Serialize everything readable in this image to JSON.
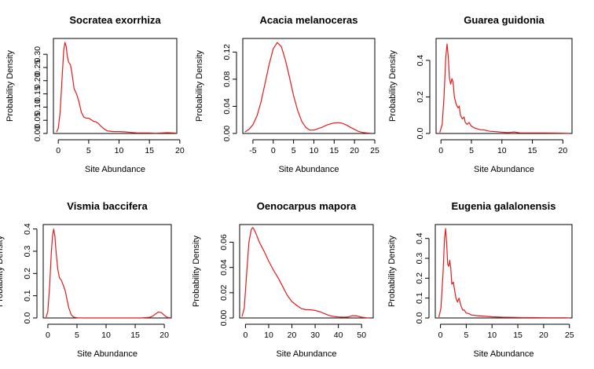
{
  "chart_data": [
    {
      "type": "line",
      "title": "Socratea exorrhiza",
      "xlabel": "Site Abundance",
      "ylabel": "Probability Density",
      "xlim": [
        -0.8,
        19.5
      ],
      "ylim": [
        0,
        0.36
      ],
      "xticks": [
        0,
        5,
        10,
        15,
        20
      ],
      "yticks": [
        0,
        0.05,
        0.1,
        0.15,
        0.2,
        0.25,
        0.3
      ],
      "ytick_labels": [
        "0.00",
        "0.05",
        "0.10",
        "0.15",
        "0.20",
        "0.25",
        "0.30"
      ],
      "series": [
        {
          "color": "#e41a1c",
          "x": [
            -0.3,
            0,
            0.3,
            0.6,
            0.9,
            1.1,
            1.3,
            1.5,
            1.7,
            2.0,
            2.3,
            2.6,
            3.0,
            3.4,
            3.8,
            4.2,
            4.6,
            5.0,
            5.4,
            5.8,
            6.2,
            6.6,
            7.0,
            7.5,
            8.0,
            9.0,
            10.0,
            11.0,
            12.0,
            13.0,
            14.0,
            15.0,
            16.0,
            17.0,
            18.0,
            19.0,
            19.5
          ],
          "y": [
            0.005,
            0.02,
            0.08,
            0.2,
            0.315,
            0.345,
            0.33,
            0.29,
            0.27,
            0.26,
            0.22,
            0.17,
            0.15,
            0.12,
            0.08,
            0.062,
            0.058,
            0.058,
            0.052,
            0.046,
            0.044,
            0.038,
            0.028,
            0.018,
            0.01,
            0.007,
            0.007,
            0.006,
            0.004,
            0.002,
            0.002,
            0.002,
            0.001,
            0.002,
            0.003,
            0.002,
            0.001
          ]
        }
      ]
    },
    {
      "type": "line",
      "title": "Acacia melanoceras",
      "xlabel": "Site Abundance",
      "ylabel": "Probability Density",
      "xlim": [
        -7.5,
        25
      ],
      "ylim": [
        0,
        0.14
      ],
      "xticks": [
        -5,
        0,
        5,
        10,
        15,
        20,
        25
      ],
      "yticks": [
        0,
        0.04,
        0.08,
        0.12
      ],
      "ytick_labels": [
        "0.00",
        "0.04",
        "0.08",
        "0.12"
      ],
      "series": [
        {
          "color": "#e41a1c",
          "x": [
            -7,
            -6,
            -5,
            -4,
            -3,
            -2,
            -1,
            0,
            1,
            2,
            3,
            4,
            5,
            6,
            7,
            8,
            9,
            10,
            11,
            12,
            13,
            14,
            15,
            16,
            17,
            18,
            19,
            20,
            21,
            22,
            23,
            24
          ],
          "y": [
            0.002,
            0.006,
            0.013,
            0.026,
            0.047,
            0.074,
            0.102,
            0.125,
            0.134,
            0.128,
            0.108,
            0.083,
            0.056,
            0.034,
            0.018,
            0.009,
            0.005,
            0.005,
            0.007,
            0.009,
            0.012,
            0.014,
            0.0155,
            0.016,
            0.015,
            0.0125,
            0.009,
            0.006,
            0.003,
            0.0015,
            0.0008,
            0.0003
          ]
        }
      ]
    },
    {
      "type": "line",
      "title": "Guarea guidonia",
      "xlabel": "Site Abundance",
      "ylabel": "Probability Density",
      "xlim": [
        -0.8,
        21.5
      ],
      "ylim": [
        0,
        0.52
      ],
      "xticks": [
        0,
        5,
        10,
        15,
        20
      ],
      "yticks": [
        0,
        0.2,
        0.4
      ],
      "ytick_labels": [
        "0.0",
        "0.2",
        "0.4"
      ],
      "series": [
        {
          "color": "#e41a1c",
          "x": [
            -0.2,
            0.2,
            0.5,
            0.8,
            1.0,
            1.2,
            1.4,
            1.6,
            1.8,
            2.0,
            2.2,
            2.5,
            2.8,
            3.0,
            3.2,
            3.5,
            3.8,
            4.0,
            4.3,
            4.6,
            5.0,
            5.5,
            6.0,
            6.5,
            7.0,
            8.0,
            9.0,
            10.0,
            11.0,
            12.0,
            13.0,
            15.0,
            17.0,
            19.0,
            21.0
          ],
          "y": [
            0.005,
            0.05,
            0.2,
            0.42,
            0.49,
            0.42,
            0.3,
            0.27,
            0.3,
            0.28,
            0.2,
            0.16,
            0.14,
            0.15,
            0.1,
            0.08,
            0.09,
            0.06,
            0.05,
            0.06,
            0.04,
            0.03,
            0.025,
            0.02,
            0.02,
            0.012,
            0.01,
            0.007,
            0.005,
            0.008,
            0.003,
            0.003,
            0.003,
            0.002,
            0.001
          ]
        }
      ]
    },
    {
      "type": "line",
      "title": "Vismia baccifera",
      "xlabel": "Site Abundance",
      "ylabel": "Probability Density",
      "xlim": [
        -0.8,
        21.2
      ],
      "ylim": [
        0,
        0.42
      ],
      "xticks": [
        0,
        5,
        10,
        15,
        20
      ],
      "yticks": [
        0,
        0.1,
        0.2,
        0.3,
        0.4
      ],
      "ytick_labels": [
        "0.0",
        "0.1",
        "0.2",
        "0.3",
        "0.4"
      ],
      "series": [
        {
          "color": "#e41a1c",
          "x": [
            -0.3,
            0,
            0.3,
            0.6,
            0.8,
            1.0,
            1.2,
            1.4,
            1.7,
            2.0,
            2.3,
            2.6,
            3.0,
            3.3,
            3.6,
            4.0,
            4.4,
            5.0,
            6.0,
            8.0,
            10.0,
            12.0,
            14.0,
            16.0,
            17.5,
            18.0,
            18.5,
            19.0,
            19.5,
            20.0,
            20.5,
            21.0
          ],
          "y": [
            0.003,
            0.03,
            0.14,
            0.3,
            0.37,
            0.4,
            0.37,
            0.3,
            0.22,
            0.18,
            0.17,
            0.15,
            0.12,
            0.08,
            0.045,
            0.015,
            0.004,
            0.001,
            0.0,
            0.0,
            0.0,
            0.0,
            0.0,
            0.0,
            0.003,
            0.008,
            0.018,
            0.027,
            0.024,
            0.012,
            0.003,
            0.001
          ]
        }
      ]
    },
    {
      "type": "line",
      "title": "Oenocarpus mapora",
      "xlabel": "Site Abundance",
      "ylabel": "Probability Density",
      "xlim": [
        -2.5,
        55
      ],
      "ylim": [
        0,
        0.074
      ],
      "xticks": [
        0,
        10,
        20,
        30,
        40,
        50
      ],
      "yticks": [
        0,
        0.02,
        0.04,
        0.06
      ],
      "ytick_labels": [
        "0.00",
        "0.02",
        "0.04",
        "0.06"
      ],
      "series": [
        {
          "color": "#e41a1c",
          "x": [
            -1.5,
            -0.5,
            0.5,
            1.5,
            2.5,
            3.0,
            3.5,
            4.5,
            6,
            8,
            10,
            12,
            14,
            16,
            18,
            20,
            22,
            24,
            26,
            28,
            30,
            32,
            34,
            36,
            38,
            40,
            42,
            44,
            46,
            48,
            50,
            52,
            53.5
          ],
          "y": [
            0.001,
            0.008,
            0.035,
            0.06,
            0.07,
            0.0715,
            0.071,
            0.067,
            0.06,
            0.053,
            0.045,
            0.038,
            0.032,
            0.025,
            0.018,
            0.013,
            0.01,
            0.0075,
            0.0065,
            0.0065,
            0.006,
            0.005,
            0.0035,
            0.002,
            0.0012,
            0.0008,
            0.0006,
            0.0007,
            0.0018,
            0.0016,
            0.0006,
            0.0002,
            0.0001
          ]
        }
      ]
    },
    {
      "type": "line",
      "title": "Eugenia galalonensis",
      "xlabel": "Site Abundance",
      "ylabel": "Probability Density",
      "xlim": [
        -1.0,
        25.5
      ],
      "ylim": [
        0,
        0.47
      ],
      "xticks": [
        0,
        5,
        10,
        15,
        20,
        25
      ],
      "yticks": [
        0,
        0.1,
        0.2,
        0.3,
        0.4
      ],
      "ytick_labels": [
        "0.0",
        "0.1",
        "0.2",
        "0.3",
        "0.4"
      ],
      "series": [
        {
          "color": "#e41a1c",
          "x": [
            -0.3,
            0.1,
            0.5,
            0.8,
            1.0,
            1.2,
            1.4,
            1.6,
            1.8,
            2.0,
            2.2,
            2.5,
            2.8,
            3.0,
            3.3,
            3.6,
            4.0,
            4.3,
            4.6,
            5.0,
            5.5,
            6.0,
            7.0,
            8.0,
            9.0,
            10.0,
            12.0,
            14.0,
            16.0,
            18.0,
            20.0,
            22.0,
            24.0,
            25.0
          ],
          "y": [
            0.004,
            0.05,
            0.22,
            0.4,
            0.45,
            0.38,
            0.27,
            0.26,
            0.29,
            0.25,
            0.17,
            0.18,
            0.13,
            0.1,
            0.08,
            0.1,
            0.06,
            0.04,
            0.04,
            0.025,
            0.022,
            0.015,
            0.012,
            0.01,
            0.008,
            0.006,
            0.004,
            0.003,
            0.002,
            0.002,
            0.001,
            0.001,
            0.001,
            0.0005
          ]
        }
      ]
    }
  ]
}
